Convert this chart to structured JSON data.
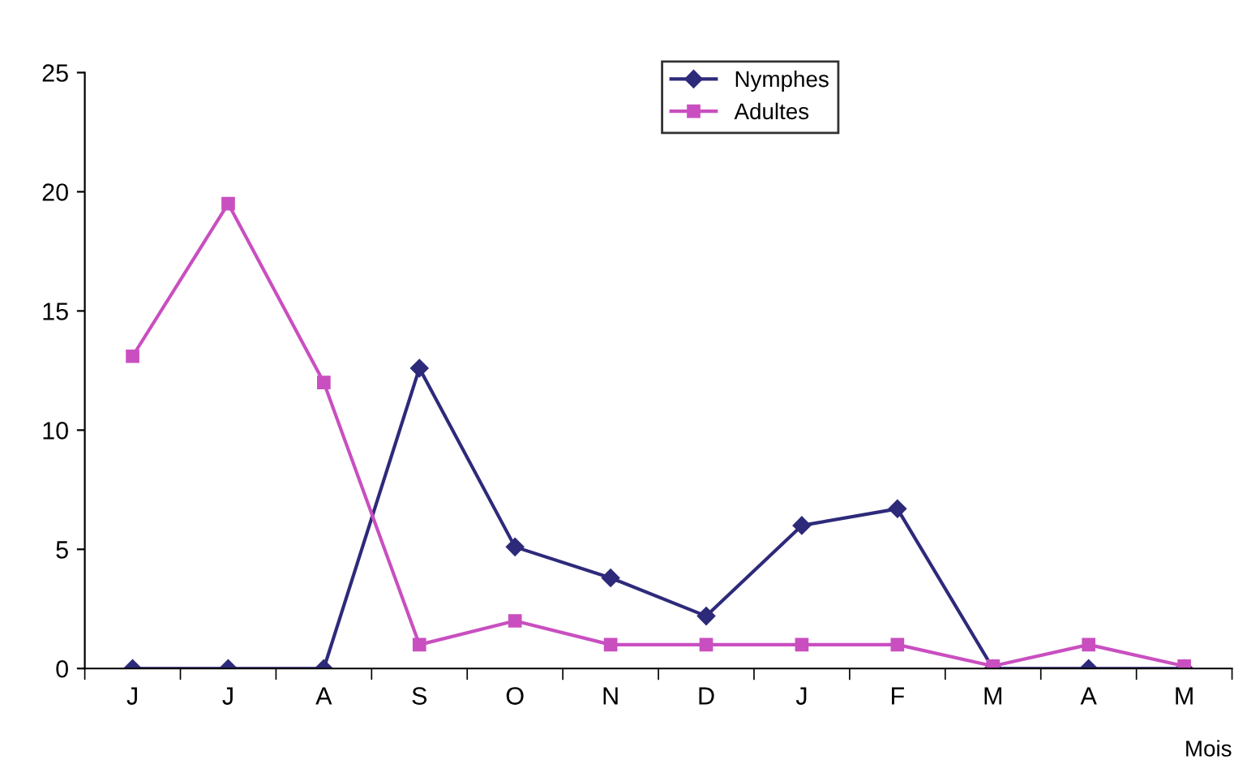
{
  "chart_data": {
    "type": "line",
    "xlabel": "Mois",
    "categories": [
      "J",
      "J",
      "A",
      "S",
      "O",
      "N",
      "D",
      "J",
      "F",
      "M",
      "A",
      "M"
    ],
    "series": [
      {
        "name": "Nymphes",
        "color": "#2e2a7a",
        "marker": "diamond",
        "values": [
          0,
          0,
          0,
          12.6,
          5.1,
          3.8,
          2.2,
          6.0,
          6.7,
          0,
          0,
          0
        ]
      },
      {
        "name": "Adultes",
        "color": "#c94fc0",
        "marker": "square",
        "values": [
          13.1,
          19.5,
          12.0,
          1,
          2,
          1,
          1,
          1,
          1,
          0.1,
          1,
          0.1
        ]
      }
    ],
    "ylim": [
      0,
      25
    ],
    "yticks": [
      0,
      5,
      10,
      15,
      20,
      25
    ],
    "grid": false,
    "legend": "top",
    "line_style": "solid"
  }
}
